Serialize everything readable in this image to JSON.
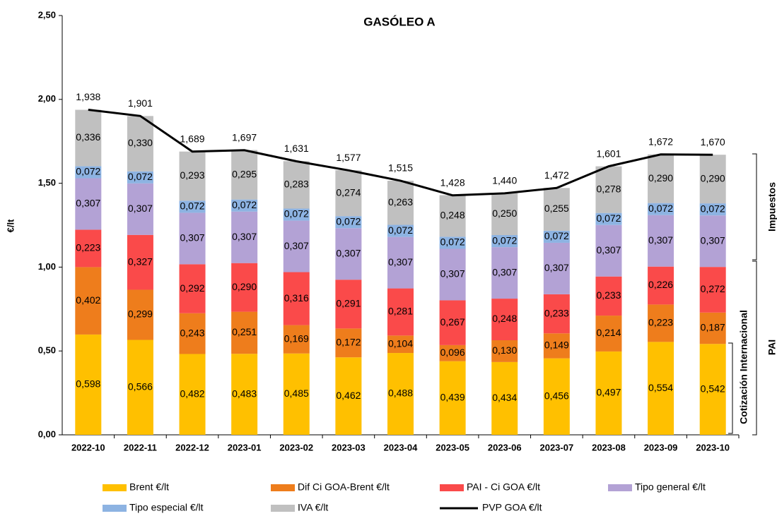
{
  "chart_data": {
    "type": "bar",
    "stacked": true,
    "title": "GASÓLEO A",
    "y_label": "€/lt",
    "categories": [
      "2022-10",
      "2022-11",
      "2022-12",
      "2023-01",
      "2023-02",
      "2023-03",
      "2023-04",
      "2023-05",
      "2023-06",
      "2023-07",
      "2023-08",
      "2023-09",
      "2023-10"
    ],
    "series": [
      {
        "name": "Brent €/lt",
        "color": "#ffc000",
        "values": [
          0.598,
          0.566,
          0.482,
          0.483,
          0.485,
          0.462,
          0.488,
          0.439,
          0.434,
          0.456,
          0.497,
          0.554,
          0.542
        ],
        "value_labels": [
          "0,598",
          "0,566",
          "0,482",
          "0,483",
          "0,485",
          "0,462",
          "0,488",
          "0,439",
          "0,434",
          "0,456",
          "0,497",
          "0,554",
          "0,542"
        ]
      },
      {
        "name": "Dif Ci GOA-Brent €/lt",
        "color": "#ee7d1c",
        "values": [
          0.402,
          0.299,
          0.243,
          0.251,
          0.169,
          0.172,
          0.104,
          0.096,
          0.13,
          0.149,
          0.214,
          0.223,
          0.187
        ],
        "value_labels": [
          "0,402",
          "0,299",
          "0,243",
          "0,251",
          "0,169",
          "0,172",
          "0,104",
          "0,096",
          "0,130",
          "0,149",
          "0,214",
          "0,223",
          "0,187"
        ]
      },
      {
        "name": "PAI - Ci GOA €/lt",
        "color": "#fa4a4a",
        "values": [
          0.223,
          0.327,
          0.292,
          0.29,
          0.316,
          0.291,
          0.281,
          0.267,
          0.248,
          0.233,
          0.233,
          0.226,
          0.272
        ],
        "value_labels": [
          "0,223",
          "0,327",
          "0,292",
          "0,290",
          "0,316",
          "0,291",
          "0,281",
          "0,267",
          "0,248",
          "0,233",
          "0,233",
          "0,226",
          "0,272"
        ]
      },
      {
        "name": "Tipo general €/lt",
        "color": "#b3a2d5",
        "values": [
          0.307,
          0.307,
          0.307,
          0.307,
          0.307,
          0.307,
          0.307,
          0.307,
          0.307,
          0.307,
          0.307,
          0.307,
          0.307
        ],
        "value_labels": [
          "0,307",
          "0,307",
          "0,307",
          "0,307",
          "0,307",
          "0,307",
          "0,307",
          "0,307",
          "0,307",
          "0,307",
          "0,307",
          "0,307",
          "0,307"
        ]
      },
      {
        "name": "Tipo especial €/lt",
        "color": "#8db3e2",
        "values": [
          0.072,
          0.072,
          0.072,
          0.072,
          0.072,
          0.072,
          0.072,
          0.072,
          0.072,
          0.072,
          0.072,
          0.072,
          0.072
        ],
        "value_labels": [
          "0,072",
          "0,072",
          "0,072",
          "0,072",
          "0,072",
          "0,072",
          "0,072",
          "0,072",
          "0,072",
          "0,072",
          "0,072",
          "0,072",
          "0,072"
        ]
      },
      {
        "name": "IVA €/lt",
        "color": "#c0c0c0",
        "values": [
          0.336,
          0.33,
          0.293,
          0.295,
          0.283,
          0.274,
          0.263,
          0.248,
          0.25,
          0.255,
          0.278,
          0.29,
          0.29
        ],
        "value_labels": [
          "0,336",
          "0,330",
          "0,293",
          "0,295",
          "0,283",
          "0,274",
          "0,263",
          "0,248",
          "0,250",
          "0,255",
          "0,278",
          "0,290",
          "0,290"
        ]
      },
      {
        "name": "PVP GOA €/lt",
        "color": "#000000",
        "type": "line",
        "values": [
          1.938,
          1.901,
          1.689,
          1.697,
          1.631,
          1.577,
          1.515,
          1.428,
          1.44,
          1.472,
          1.601,
          1.672,
          1.67
        ],
        "value_labels": [
          "1,938",
          "1,901",
          "1,689",
          "1,697",
          "1,631",
          "1,577",
          "1,515",
          "1,428",
          "1,440",
          "1,472",
          "1,601",
          "1,672",
          "1,670"
        ]
      }
    ],
    "ylim": [
      0,
      2.5
    ],
    "yticks": [
      {
        "value": 0,
        "label": "0,00"
      },
      {
        "value": 0.5,
        "label": "0,50"
      },
      {
        "value": 1,
        "label": "1,00"
      },
      {
        "value": 1.5,
        "label": "1,50"
      },
      {
        "value": 2,
        "label": "2,00"
      },
      {
        "value": 2.5,
        "label": "2,50"
      }
    ],
    "annotations": [
      "Impuestos",
      "PAI",
      "Cotización Internacional"
    ]
  }
}
